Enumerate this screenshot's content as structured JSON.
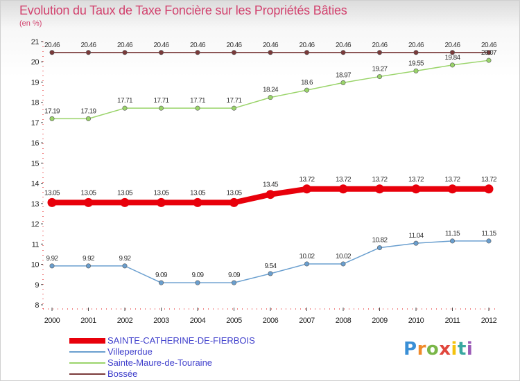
{
  "header": {
    "title": "Evolution du Taux de Taxe Foncière sur les Propriétés Bâties",
    "unit": "(en %)"
  },
  "logo": {
    "text": "Proxiti",
    "letters": [
      "P",
      "r",
      "o",
      "x",
      "i",
      "t",
      "i"
    ]
  },
  "chart_data": {
    "type": "line",
    "title": "Evolution du Taux de Taxe Foncière sur les Propriétés Bâties",
    "ylabel": "(en %)",
    "xlabel": "",
    "categories": [
      "2000",
      "2001",
      "2002",
      "2003",
      "2004",
      "2005",
      "2006",
      "2007",
      "2008",
      "2009",
      "2010",
      "2011",
      "2012"
    ],
    "ylim": [
      8,
      21
    ],
    "yticks": [
      "8",
      "9",
      "10",
      "11",
      "12",
      "13",
      "14",
      "15",
      "16",
      "17",
      "18",
      "19",
      "20",
      "21"
    ],
    "series": [
      {
        "name": "SAINTE-CATHERINE-DE-FIERBOIS",
        "color": "#e8000b",
        "emphasis": true,
        "values": [
          13.05,
          13.05,
          13.05,
          13.05,
          13.05,
          13.05,
          13.45,
          13.72,
          13.72,
          13.72,
          13.72,
          13.72,
          13.72
        ],
        "labels": [
          "13.05",
          "13.05",
          "13.05",
          "13.05",
          "13.05",
          "13.05",
          "13.45",
          "13.72",
          "13.72",
          "13.72",
          "13.72",
          "13.72",
          "13.72"
        ]
      },
      {
        "name": "Villeperdue",
        "color": "#6a9fcf",
        "values": [
          9.92,
          9.92,
          9.92,
          9.09,
          9.09,
          9.09,
          9.54,
          10.02,
          10.02,
          10.82,
          11.04,
          11.15,
          11.15
        ],
        "labels": [
          "9.92",
          "9.92",
          "9.92",
          "9.09",
          "9.09",
          "9.09",
          "9.54",
          "10.02",
          "10.02",
          "10.82",
          "11.04",
          "11.15",
          "11.15"
        ]
      },
      {
        "name": "Sainte-Maure-de-Touraine",
        "color": "#9ad46a",
        "values": [
          17.19,
          17.19,
          17.71,
          17.71,
          17.71,
          17.71,
          18.24,
          18.6,
          18.97,
          19.27,
          19.55,
          19.84,
          20.07
        ],
        "labels": [
          "17.19",
          "17.19",
          "17.71",
          "17.71",
          "17.71",
          "17.71",
          "18.24",
          "18.6",
          "18.97",
          "19.27",
          "19.55",
          "19.84",
          "20.07"
        ]
      },
      {
        "name": "Bossée",
        "color": "#7a3a3a",
        "values": [
          20.46,
          20.46,
          20.46,
          20.46,
          20.46,
          20.46,
          20.46,
          20.46,
          20.46,
          20.46,
          20.46,
          20.46,
          20.46
        ],
        "labels": [
          "20.46",
          "20.46",
          "20.46",
          "20.46",
          "20.46",
          "20.46",
          "20.46",
          "20.46",
          "20.46",
          "20.46",
          "20.46",
          "20.46",
          "20.46"
        ]
      }
    ],
    "legend_position": "bottom-left",
    "grid": false
  }
}
